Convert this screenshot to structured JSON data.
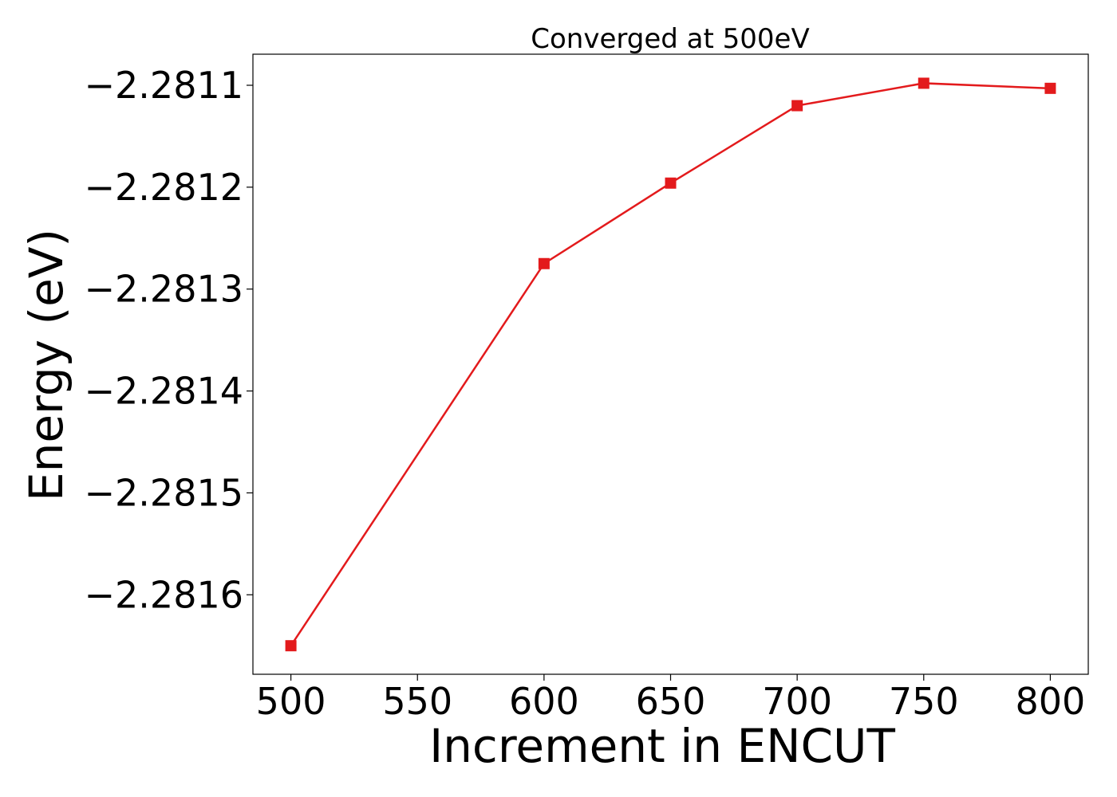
{
  "chart_data": {
    "type": "line",
    "title": "Converged at 500eV",
    "xlabel": "Increment in ENCUT",
    "ylabel": "Energy (eV)",
    "x": [
      500,
      600,
      650,
      700,
      750,
      800
    ],
    "series": [
      {
        "values": [
          -2.28165,
          -2.281275,
          -2.281196,
          -2.28112,
          -2.281098,
          -2.281103
        ],
        "color": "#e31a1c",
        "marker": "square"
      }
    ],
    "xlim": [
      485,
      815
    ],
    "ylim": [
      -2.281678,
      -2.2810695
    ],
    "xticks": [
      500,
      550,
      600,
      650,
      700,
      750,
      800
    ],
    "xtick_labels": [
      "500",
      "550",
      "600",
      "650",
      "700",
      "750",
      "800"
    ],
    "yticks": [
      -2.2811,
      -2.2812,
      -2.2813,
      -2.2814,
      -2.2815,
      -2.2816
    ],
    "ytick_labels": [
      "−2.2811",
      "−2.2812",
      "−2.2813",
      "−2.2814",
      "−2.2815",
      "−2.2816"
    ],
    "grid": false,
    "legend": "none"
  }
}
